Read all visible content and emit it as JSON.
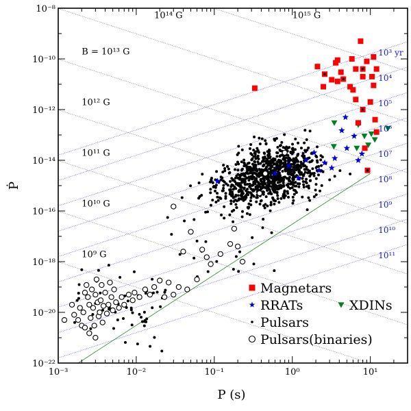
{
  "chart_data": {
    "type": "scatter",
    "xlabel": "P (s)",
    "ylabel": "Ṗ",
    "xscale": "log",
    "yscale": "log",
    "xlim": [
      0.001,
      30
    ],
    "ylim": [
      1e-22,
      1e-08
    ],
    "x_ticks": [
      {
        "value": 0.001,
        "label": "10⁻³"
      },
      {
        "value": 0.01,
        "label": "10⁻²"
      },
      {
        "value": 0.1,
        "label": "10⁻¹"
      },
      {
        "value": 1,
        "label": "10⁰"
      },
      {
        "value": 10,
        "label": "10¹"
      }
    ],
    "y_ticks": [
      {
        "value": 1e-22,
        "label": "10⁻²²"
      },
      {
        "value": 1e-20,
        "label": "10⁻²⁰"
      },
      {
        "value": 1e-18,
        "label": "10⁻¹⁸"
      },
      {
        "value": 1e-16,
        "label": "10⁻¹⁶"
      },
      {
        "value": 1e-14,
        "label": "10⁻¹⁴"
      },
      {
        "value": 1e-12,
        "label": "10⁻¹²"
      },
      {
        "value": 1e-10,
        "label": "10⁻¹⁰"
      },
      {
        "value": 1e-08,
        "label": "10⁻⁸"
      }
    ],
    "field_lines": [
      {
        "B": 1000000000.0,
        "label": "10⁹ G",
        "label_at": [
          0.002,
          1.5e-18
        ]
      },
      {
        "B": 10000000000.0,
        "label": "10¹⁰ G",
        "label_at": [
          0.002,
          1.5e-16
        ]
      },
      {
        "B": 100000000000.0,
        "label": "10¹¹ G",
        "label_at": [
          0.002,
          1.5e-14
        ]
      },
      {
        "B": 1000000000000.0,
        "label": "10¹² G",
        "label_at": [
          0.002,
          1.5e-12
        ]
      },
      {
        "B": 10000000000000.0,
        "label": "B = 10¹³ G",
        "label_at": [
          0.002,
          1.5e-10
        ]
      },
      {
        "B": 100000000000000.0,
        "label": "10¹⁴ G",
        "label_at": [
          0.017,
          4e-09
        ]
      },
      {
        "B": 1000000000000000.0,
        "label": "10¹⁵ G",
        "label_at": [
          1,
          4e-09
        ]
      }
    ],
    "age_lines": [
      {
        "age_yr": 1000.0,
        "label": "10³ yr"
      },
      {
        "age_yr": 10000.0,
        "label": "10⁴"
      },
      {
        "age_yr": 100000.0,
        "label": "10⁵"
      },
      {
        "age_yr": 1000000.0,
        "label": "10⁶"
      },
      {
        "age_yr": 10000000.0,
        "label": "10⁷"
      },
      {
        "age_yr": 100000000.0,
        "label": "10⁸"
      },
      {
        "age_yr": 1000000000.0,
        "label": "10⁹"
      },
      {
        "age_yr": 10000000000.0,
        "label": "10¹⁰"
      },
      {
        "age_yr": 100000000000.0,
        "label": "10¹¹"
      }
    ],
    "death_line": {
      "points": [
        [
          0.0018,
          1e-22
        ],
        [
          10,
          3e-15
        ]
      ]
    },
    "legend_position": "bottom-right",
    "series": [
      {
        "name": "Magnetars",
        "marker": "square",
        "color": "#ff0000",
        "points": [
          [
            0.33,
            7e-12
          ],
          [
            2.1,
            5e-11
          ],
          [
            2.6,
            2.5e-11
          ],
          [
            2.5,
            8e-12
          ],
          [
            3.2,
            1.5e-11
          ],
          [
            3.8,
            1.3e-11
          ],
          [
            4.2,
            3e-11
          ],
          [
            3.6,
            7e-11
          ],
          [
            4.5,
            1.6e-11
          ],
          [
            5.5,
            8e-12
          ],
          [
            6,
            6e-12
          ],
          [
            6.5,
            4e-11
          ],
          [
            7.5,
            5e-10
          ],
          [
            8,
            2e-11
          ],
          [
            8,
            4e-11
          ],
          [
            9,
            8e-11
          ],
          [
            10.5,
            2e-11
          ],
          [
            11,
            9e-12
          ],
          [
            12,
            4e-11
          ],
          [
            6.5,
            2.5e-12
          ],
          [
            8,
            1e-12
          ],
          [
            7,
            3e-13
          ],
          [
            10,
            2e-12
          ],
          [
            11.5,
            4e-13
          ],
          [
            12,
            1.3e-13
          ],
          [
            8.5,
            3e-14
          ],
          [
            9.2,
            4e-15
          ],
          [
            5.8,
            1e-10
          ],
          [
            3.8,
            9e-11
          ],
          [
            11,
            1.2e-10
          ]
        ]
      },
      {
        "name": "RRATs",
        "marker": "star",
        "color": "#0000dd",
        "points": [
          [
            0.11,
            1.5e-15
          ],
          [
            0.6,
            3e-15
          ],
          [
            1.2,
            2e-15
          ],
          [
            1.9,
            2e-14
          ],
          [
            2.6,
            8e-15
          ],
          [
            3.5,
            1.2e-14
          ],
          [
            4.3,
            1.5e-13
          ],
          [
            5,
            3e-14
          ],
          [
            6.2,
            9e-14
          ],
          [
            7,
            1e-14
          ],
          [
            7.8,
            1.8e-14
          ],
          [
            4.8,
            5e-13
          ],
          [
            3.2,
            5e-15
          ],
          [
            2.2,
            4e-15
          ],
          [
            1.5,
            1e-14
          ],
          [
            0.9,
            6e-15
          ]
        ]
      },
      {
        "name": "XDINs",
        "marker": "triangle-down",
        "color": "#00801e",
        "points": [
          [
            3.45,
            3e-13
          ],
          [
            7,
            2.5e-13
          ],
          [
            8.4,
            9e-14
          ],
          [
            10.3,
            1.1e-13
          ],
          [
            11.4,
            6.5e-14
          ],
          [
            16.8,
            1.8e-13
          ],
          [
            3.4,
            3.5e-14
          ],
          [
            6.7,
            3e-14
          ],
          [
            9.4,
            4e-14
          ]
        ]
      },
      {
        "name": "Pulsars",
        "marker": "dot",
        "color": "#000000",
        "points": []
      },
      {
        "name": "Pulsars(binaries)",
        "marker": "open-circle",
        "color": "#000000",
        "points": [
          [
            0.0015,
            2e-20
          ],
          [
            0.0016,
            8e-21
          ],
          [
            0.0018,
            5e-21
          ],
          [
            0.0019,
            1.5e-20
          ],
          [
            0.002,
            3e-21
          ],
          [
            0.0021,
            1e-20
          ],
          [
            0.0022,
            6e-20
          ],
          [
            0.0022,
            2.5e-21
          ],
          [
            0.0023,
            1.2e-19
          ],
          [
            0.0024,
            4e-20
          ],
          [
            0.0025,
            1.5e-21
          ],
          [
            0.0025,
            2e-20
          ],
          [
            0.0026,
            6e-21
          ],
          [
            0.0027,
            8e-20
          ],
          [
            0.0028,
            1.5e-20
          ],
          [
            0.0029,
            3e-21
          ],
          [
            0.003,
            1e-21
          ],
          [
            0.003,
            5e-20
          ],
          [
            0.0031,
            2e-19
          ],
          [
            0.0032,
            2.5e-20
          ],
          [
            0.0033,
            7e-21
          ],
          [
            0.0034,
            1e-20
          ],
          [
            0.0035,
            3e-20
          ],
          [
            0.0036,
            1.2e-19
          ],
          [
            0.0037,
            4e-21
          ],
          [
            0.0038,
            1.8e-20
          ],
          [
            0.004,
            6e-20
          ],
          [
            0.0042,
            9e-21
          ],
          [
            0.0044,
            2e-20
          ],
          [
            0.0046,
            1.5e-19
          ],
          [
            0.0048,
            4e-20
          ],
          [
            0.005,
            1.2e-20
          ],
          [
            0.0052,
            8e-20
          ],
          [
            0.0055,
            2.5e-20
          ],
          [
            0.006,
            1.5e-20
          ],
          [
            0.0065,
            4e-20
          ],
          [
            0.007,
            2e-20
          ],
          [
            0.008,
            5e-20
          ],
          [
            0.009,
            3e-20
          ],
          [
            0.0095,
            6e-20
          ],
          [
            0.011,
            4e-20
          ],
          [
            0.013,
            8e-20
          ],
          [
            0.015,
            5e-20
          ],
          [
            0.017,
            1e-19
          ],
          [
            0.02,
            1.8e-19
          ],
          [
            0.023,
            4e-20
          ],
          [
            0.026,
            1.5e-19
          ],
          [
            0.03,
            5e-20
          ],
          [
            0.035,
            1e-19
          ],
          [
            0.04,
            2.5e-18
          ],
          [
            0.045,
            8e-20
          ],
          [
            0.03,
            1.5e-16
          ],
          [
            0.06,
            2e-19
          ],
          [
            0.07,
            3e-18
          ],
          [
            0.08,
            1.5e-18
          ],
          [
            0.09,
            8e-19
          ],
          [
            0.12,
            2e-18
          ],
          [
            0.16,
            5e-18
          ],
          [
            0.18,
            2e-17
          ],
          [
            0.2,
            4e-18
          ],
          [
            0.23,
            1e-18
          ],
          [
            0.38,
            5e-16
          ],
          [
            0.45,
            3e-15
          ],
          [
            0.8,
            2e-14
          ],
          [
            0.05,
            1.5e-17
          ],
          [
            0.0012,
            5e-21
          ]
        ]
      }
    ]
  }
}
